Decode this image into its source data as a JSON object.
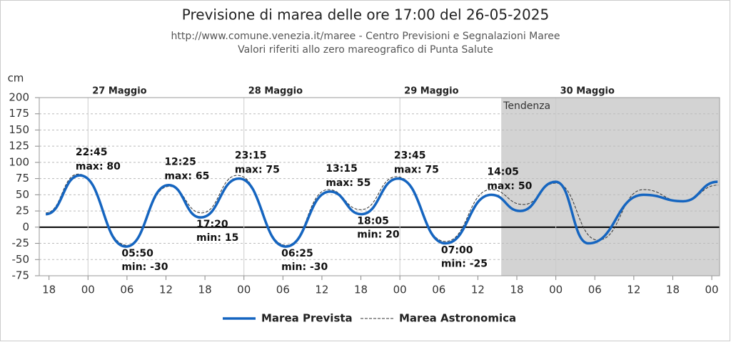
{
  "chart_data": {
    "type": "line",
    "title": "Previsione di marea delle ore 17:00 del 26-05-2025",
    "subtitle": [
      "http://www.comune.venezia.it/maree - Centro Previsioni e Segnalazioni Maree",
      "Valori riferiti allo zero mareografico di Punta Salute"
    ],
    "y_label": "cm",
    "tendency_label": "Tendenza",
    "tendency_start": 87.6,
    "ylim": [
      -75,
      200
    ],
    "yticks": [
      -75,
      -50,
      -25,
      0,
      25,
      50,
      75,
      100,
      125,
      150,
      175,
      200
    ],
    "xlim": [
      16.5,
      121.2
    ],
    "xticks": [
      {
        "value": 18,
        "label": "18"
      },
      {
        "value": 24,
        "label": "00"
      },
      {
        "value": 30,
        "label": "06"
      },
      {
        "value": 36,
        "label": "12"
      },
      {
        "value": 42,
        "label": "18"
      },
      {
        "value": 48,
        "label": "00"
      },
      {
        "value": 54,
        "label": "06"
      },
      {
        "value": 60,
        "label": "12"
      },
      {
        "value": 66,
        "label": "18"
      },
      {
        "value": 72,
        "label": "00"
      },
      {
        "value": 78,
        "label": "06"
      },
      {
        "value": 84,
        "label": "12"
      },
      {
        "value": 90,
        "label": "18"
      },
      {
        "value": 96,
        "label": "00"
      },
      {
        "value": 102,
        "label": "06"
      },
      {
        "value": 108,
        "label": "12"
      },
      {
        "value": 114,
        "label": "18"
      },
      {
        "value": 120,
        "label": "00"
      }
    ],
    "date_ticks": [
      {
        "value": 24,
        "label": "27 Maggio"
      },
      {
        "value": 48,
        "label": "28 Maggio"
      },
      {
        "value": 72,
        "label": "29 Maggio"
      },
      {
        "value": 96,
        "label": "30 Maggio"
      }
    ],
    "grid": true,
    "series": [
      {
        "name": "Marea Prevista",
        "color": "#1565c0",
        "style": "solid",
        "x": [
          17.5,
          22.75,
          29.83,
          36.42,
          41.33,
          47.25,
          54.42,
          61.25,
          66.08,
          71.75,
          79,
          86.08,
          90.5,
          96,
          101,
          109.5,
          115.6,
          120.9
        ],
        "values": [
          20,
          80,
          -30,
          65,
          15,
          75,
          -30,
          55,
          20,
          75,
          -25,
          50,
          25,
          70,
          -25,
          50,
          40,
          70
        ],
        "x_labels": [
          null,
          "22:45",
          "05:50",
          "12:25",
          "17:20",
          "23:15",
          "06:25",
          "13:15",
          "18:05",
          "23:45",
          "07:00",
          "14:05",
          null,
          null,
          null,
          null,
          null,
          null
        ],
        "value_labels": [
          null,
          "max: 80",
          "min: -30",
          "max: 65",
          "min: 15",
          "max: 75",
          "min: -30",
          "max: 55",
          "min: 20",
          "max: 75",
          "min: -25",
          "max: 50",
          null,
          null,
          null,
          null,
          null,
          null
        ]
      },
      {
        "name": "Marea Astronomica",
        "color": "#333333",
        "style": "dashed",
        "x": [
          17.5,
          22.5,
          30,
          36.5,
          41.5,
          47,
          54.5,
          61,
          66,
          71.5,
          79,
          86,
          91,
          96,
          102.5,
          109.5,
          115.5,
          121
        ],
        "values": [
          22,
          82,
          -28,
          63,
          22,
          80,
          -28,
          58,
          27,
          78,
          -22,
          58,
          35,
          68,
          -20,
          58,
          40,
          65
        ]
      }
    ],
    "legend": "bottom"
  }
}
